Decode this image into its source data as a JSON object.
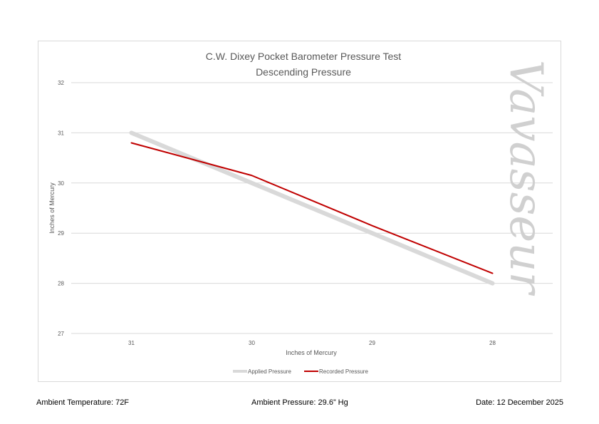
{
  "chart_data": {
    "type": "line",
    "title": "C.W. Dixey Pocket Barometer Pressure Test",
    "subtitle": "Descending Pressure",
    "xlabel": "Inches of Mercury",
    "ylabel": "Inches of Mercury",
    "categories": [
      "31",
      "30",
      "29",
      "28"
    ],
    "ylim": [
      27,
      32
    ],
    "yticks": [
      "27",
      "28",
      "29",
      "30",
      "31",
      "32"
    ],
    "grid": true,
    "legend_position": "bottom",
    "series": [
      {
        "name": "Applied Pressure",
        "values": [
          31,
          30,
          29,
          28
        ],
        "color": "#d9d9d9"
      },
      {
        "name": "Recorded Pressure",
        "values": [
          30.8,
          30.15,
          29.15,
          28.2
        ],
        "color": "#c00000"
      }
    ],
    "watermark": "Vavasseur"
  },
  "footer": {
    "temperature": "Ambient Temperature: 72F",
    "pressure": "Ambient Pressure: 29.6” Hg",
    "date": "Date: 12 December 2025"
  }
}
